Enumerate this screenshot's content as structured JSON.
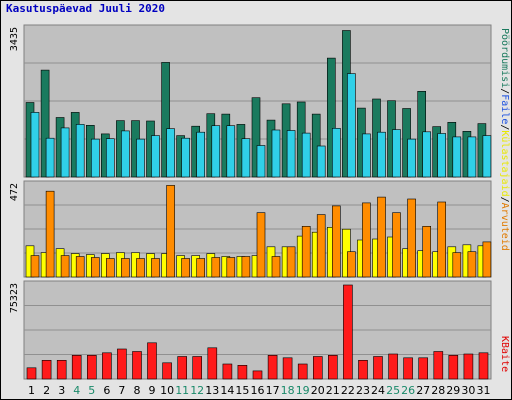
{
  "title": "Kasutuspäevad Juuli 2020",
  "chart_data": {
    "type": "bar",
    "categories": [
      "1",
      "2",
      "3",
      "4",
      "5",
      "6",
      "7",
      "8",
      "9",
      "10",
      "11",
      "12",
      "13",
      "14",
      "15",
      "16",
      "17",
      "18",
      "19",
      "20",
      "21",
      "22",
      "23",
      "24",
      "25",
      "26",
      "27",
      "28",
      "29",
      "30",
      "31"
    ],
    "weekend_days": [
      "4",
      "5",
      "11",
      "12",
      "18",
      "19",
      "25",
      "26"
    ],
    "panels": [
      {
        "name": "top",
        "ymax_label": "3435",
        "ymax": 3435,
        "series": [
          {
            "name": "Pöördumisi",
            "color": "#1a7a5e",
            "values": [
              1730,
              2480,
              1380,
              1500,
              1200,
              1000,
              1310,
              1310,
              1300,
              2660,
              960,
              1180,
              1470,
              1460,
              1220,
              1840,
              1320,
              1700,
              1740,
              1460,
              2760,
              3400,
              1600,
              1810,
              1770,
              1590,
              1990,
              1170,
              1270,
              1060,
              1240
            ]
          },
          {
            "name": "Faile",
            "color": "#30d0e8",
            "values": [
              1500,
              900,
              1140,
              1220,
              880,
              890,
              1070,
              880,
              960,
              1120,
              900,
              1040,
              1190,
              1190,
              890,
              730,
              1090,
              1080,
              1020,
              720,
              1130,
              2400,
              1000,
              1040,
              1100,
              880,
              1050,
              1010,
              930,
              930,
              960
            ]
          }
        ]
      },
      {
        "name": "middle",
        "ymax_label": "472",
        "ymax": 472,
        "series": [
          {
            "name": "Külastajaid",
            "color": "#ffff00",
            "values": [
              160,
              125,
              145,
              120,
              115,
              120,
              125,
              125,
              120,
              120,
              110,
              110,
              120,
              105,
              105,
              110,
              155,
              155,
              210,
              230,
              255,
              245,
              190,
              195,
              205,
              145,
              135,
              130,
              155,
              165,
              160
            ]
          },
          {
            "name": "Arvuteid",
            "color": "#ff8c00",
            "values": [
              110,
              440,
              110,
              105,
              100,
              95,
              95,
              95,
              95,
              470,
              95,
              95,
              100,
              100,
              105,
              330,
              105,
              155,
              260,
              320,
              365,
              130,
              380,
              410,
              330,
              400,
              260,
              385,
              125,
              130,
              180
            ]
          }
        ]
      },
      {
        "name": "bottom",
        "ymax_label": "75323",
        "ymax": 75323,
        "series": [
          {
            "name": "KBaite",
            "color": "#ff1a1a",
            "values": [
              9000,
              15000,
              15000,
              19000,
              19000,
              21000,
              24000,
              22000,
              29000,
              13000,
              18000,
              18000,
              25000,
              12000,
              11000,
              6500,
              19000,
              17000,
              12000,
              18000,
              19000,
              75323,
              15000,
              18000,
              20000,
              17000,
              17000,
              22000,
              19000,
              20000,
              21000
            ]
          }
        ]
      }
    ],
    "right_labels": {
      "top": [
        {
          "text": "Pöördumisi",
          "color": "#1a7a5e"
        },
        {
          "text": "/",
          "color": "#000000"
        },
        {
          "text": "Faile",
          "color": "#1a4fe0"
        },
        {
          "text": "/",
          "color": "#000000"
        },
        {
          "text": "Külastajaid",
          "color": "#e8e800"
        },
        {
          "text": "/",
          "color": "#000000"
        },
        {
          "text": "Arvuteid",
          "color": "#e07a00"
        }
      ],
      "bottom": [
        {
          "text": "KBaite",
          "color": "#e00000"
        }
      ]
    }
  }
}
